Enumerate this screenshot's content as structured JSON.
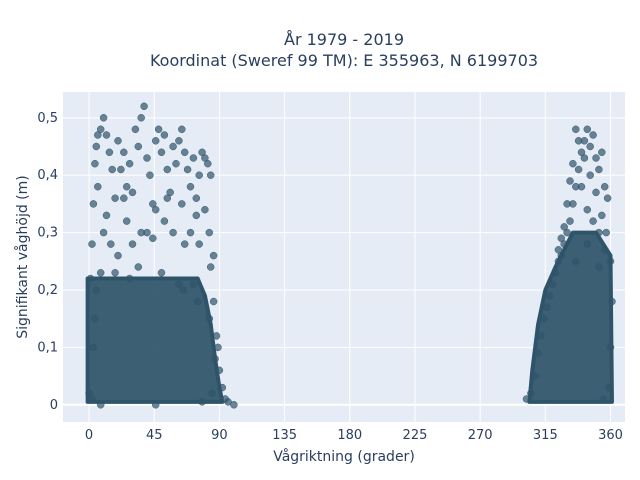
{
  "chart_data": {
    "type": "scatter",
    "title_line1": "År 1979 - 2019",
    "title_line2": "Koordinat (Sweref 99 TM): E 355963, N 6199703",
    "xlabel": "Vågriktning (grader)",
    "ylabel": "Signifikant våghöjd (m)",
    "xlim": [
      -18,
      370
    ],
    "ylim": [
      -0.03,
      0.545
    ],
    "xticks": [
      0,
      45,
      90,
      135,
      180,
      225,
      270,
      315,
      360
    ],
    "xtick_labels": [
      "0",
      "45",
      "90",
      "135",
      "180",
      "225",
      "270",
      "315",
      "360"
    ],
    "yticks": [
      0,
      0.1,
      0.2,
      0.3,
      0.4,
      0.5
    ],
    "ytick_labels": [
      "0",
      "0,1",
      "0,2",
      "0,3",
      "0,4",
      "0,5"
    ],
    "grid": true,
    "marker_color": "#2f5469",
    "plot_background": "#e5ecf6",
    "series": [
      {
        "points": [
          [
            0,
            0.02
          ],
          [
            1,
            0.22
          ],
          [
            2,
            0.28
          ],
          [
            3,
            0.35
          ],
          [
            4,
            0.42
          ],
          [
            5,
            0.45
          ],
          [
            6,
            0.47
          ],
          [
            8,
            0.48
          ],
          [
            10,
            0.5
          ],
          [
            12,
            0.47
          ],
          [
            14,
            0.44
          ],
          [
            16,
            0.41
          ],
          [
            18,
            0.36
          ],
          [
            20,
            0.46
          ],
          [
            22,
            0.41
          ],
          [
            24,
            0.44
          ],
          [
            26,
            0.38
          ],
          [
            28,
            0.42
          ],
          [
            30,
            0.37
          ],
          [
            32,
            0.48
          ],
          [
            34,
            0.45
          ],
          [
            36,
            0.5
          ],
          [
            38,
            0.52
          ],
          [
            40,
            0.43
          ],
          [
            42,
            0.4
          ],
          [
            44,
            0.35
          ],
          [
            46,
            0.46
          ],
          [
            48,
            0.48
          ],
          [
            50,
            0.44
          ],
          [
            52,
            0.47
          ],
          [
            54,
            0.41
          ],
          [
            56,
            0.37
          ],
          [
            58,
            0.45
          ],
          [
            60,
            0.42
          ],
          [
            62,
            0.46
          ],
          [
            64,
            0.48
          ],
          [
            66,
            0.44
          ],
          [
            68,
            0.41
          ],
          [
            70,
            0.38
          ],
          [
            72,
            0.43
          ],
          [
            74,
            0.36
          ],
          [
            76,
            0.4
          ],
          [
            78,
            0.44
          ],
          [
            80,
            0.43
          ],
          [
            82,
            0.42
          ],
          [
            84,
            0.4
          ],
          [
            10,
            0.3
          ],
          [
            15,
            0.28
          ],
          [
            20,
            0.26
          ],
          [
            26,
            0.32
          ],
          [
            30,
            0.28
          ],
          [
            34,
            0.24
          ],
          [
            40,
            0.3
          ],
          [
            46,
            0.34
          ],
          [
            52,
            0.32
          ],
          [
            58,
            0.3
          ],
          [
            64,
            0.35
          ],
          [
            70,
            0.3
          ],
          [
            76,
            0.28
          ],
          [
            80,
            0.34
          ],
          [
            83,
            0.3
          ],
          [
            8,
            0.23
          ],
          [
            18,
            0.23
          ],
          [
            28,
            0.22
          ],
          [
            50,
            0.23
          ],
          [
            62,
            0.21
          ],
          [
            72,
            0.21
          ],
          [
            6,
            0.38
          ],
          [
            12,
            0.33
          ],
          [
            24,
            0.36
          ],
          [
            36,
            0.3
          ],
          [
            44,
            0.29
          ],
          [
            54,
            0.36
          ],
          [
            66,
            0.28
          ],
          [
            74,
            0.33
          ],
          [
            86,
            0.18
          ],
          [
            88,
            0.12
          ],
          [
            90,
            0.06
          ],
          [
            92,
            0.03
          ],
          [
            94,
            0.01
          ],
          [
            96,
            0.005
          ],
          [
            100,
            0.0
          ],
          [
            8,
            0.0
          ],
          [
            46,
            0.0
          ],
          [
            78,
            0.005
          ],
          [
            85,
            0.02
          ],
          [
            87,
            0.08
          ],
          [
            89,
            0.1
          ],
          [
            83,
            0.15
          ],
          [
            75,
            0.18
          ],
          [
            65,
            0.2
          ],
          [
            2,
            0.01
          ],
          [
            3,
            0.1
          ],
          [
            4,
            0.15
          ],
          [
            5,
            0.2
          ],
          [
            86,
            0.26
          ],
          [
            84,
            0.24
          ]
        ]
      },
      {
        "points": [
          [
            302,
            0.01
          ],
          [
            305,
            0.02
          ],
          [
            308,
            0.05
          ],
          [
            310,
            0.09
          ],
          [
            312,
            0.12
          ],
          [
            314,
            0.15
          ],
          [
            316,
            0.17
          ],
          [
            318,
            0.19
          ],
          [
            320,
            0.21
          ],
          [
            322,
            0.23
          ],
          [
            324,
            0.25
          ],
          [
            326,
            0.26
          ],
          [
            328,
            0.28
          ],
          [
            330,
            0.3
          ],
          [
            332,
            0.32
          ],
          [
            334,
            0.35
          ],
          [
            336,
            0.38
          ],
          [
            338,
            0.41
          ],
          [
            340,
            0.44
          ],
          [
            342,
            0.46
          ],
          [
            344,
            0.48
          ],
          [
            346,
            0.45
          ],
          [
            348,
            0.47
          ],
          [
            350,
            0.43
          ],
          [
            352,
            0.41
          ],
          [
            354,
            0.44
          ],
          [
            356,
            0.38
          ],
          [
            358,
            0.36
          ],
          [
            360,
            0.25
          ],
          [
            361,
            0.18
          ],
          [
            360,
            0.1
          ],
          [
            359,
            0.03
          ],
          [
            355,
            0.01
          ],
          [
            336,
            0.48
          ],
          [
            338,
            0.46
          ],
          [
            342,
            0.43
          ],
          [
            346,
            0.4
          ],
          [
            350,
            0.37
          ],
          [
            354,
            0.33
          ],
          [
            357,
            0.3
          ],
          [
            334,
            0.42
          ],
          [
            332,
            0.39
          ],
          [
            330,
            0.35
          ],
          [
            328,
            0.31
          ],
          [
            326,
            0.29
          ],
          [
            324,
            0.27
          ],
          [
            340,
            0.38
          ],
          [
            344,
            0.34
          ],
          [
            348,
            0.32
          ],
          [
            352,
            0.3
          ],
          [
            356,
            0.27
          ],
          [
            336,
            0.25
          ],
          [
            344,
            0.28
          ],
          [
            352,
            0.24
          ]
        ]
      }
    ]
  }
}
